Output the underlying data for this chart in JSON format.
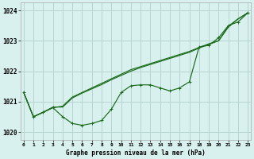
{
  "hours": [
    0,
    1,
    2,
    3,
    4,
    5,
    6,
    7,
    8,
    9,
    10,
    11,
    12,
    13,
    14,
    15,
    16,
    17,
    18,
    19,
    20,
    21,
    22,
    23
  ],
  "line1": [
    1021.3,
    1020.5,
    1020.65,
    1020.8,
    1020.85,
    1021.15,
    1021.3,
    1021.45,
    1021.6,
    1021.75,
    1021.9,
    1022.05,
    1022.15,
    1022.25,
    1022.35,
    1022.45,
    1022.55,
    1022.65,
    1022.78,
    1022.9,
    1023.0,
    1023.45,
    1023.72,
    1023.92
  ],
  "line2": [
    1021.3,
    1020.5,
    1020.65,
    1020.82,
    1020.82,
    1021.12,
    1021.28,
    1021.42,
    1021.56,
    1021.72,
    1021.86,
    1022.0,
    1022.12,
    1022.22,
    1022.32,
    1022.42,
    1022.52,
    1022.62,
    1022.76,
    1022.88,
    1023.0,
    1023.48,
    1023.72,
    1023.92
  ],
  "line3": [
    1021.3,
    1020.5,
    1020.65,
    1020.8,
    1020.5,
    1020.28,
    1020.22,
    1020.28,
    1020.38,
    1020.75,
    1021.3,
    1021.52,
    1021.55,
    1021.55,
    1021.45,
    1021.35,
    1021.45,
    1021.65,
    1022.8,
    1022.85,
    1023.1,
    1023.5,
    1023.62,
    1023.92
  ],
  "line_color": "#1a6b1a",
  "bg_color": "#d8f0ee",
  "grid_color": "#b8d4d0",
  "title": "Graphe pression niveau de la mer (hPa)",
  "yticks": [
    1020,
    1021,
    1022,
    1023,
    1024
  ],
  "ylim": [
    1019.75,
    1024.25
  ],
  "xlim": [
    -0.3,
    23.3
  ]
}
